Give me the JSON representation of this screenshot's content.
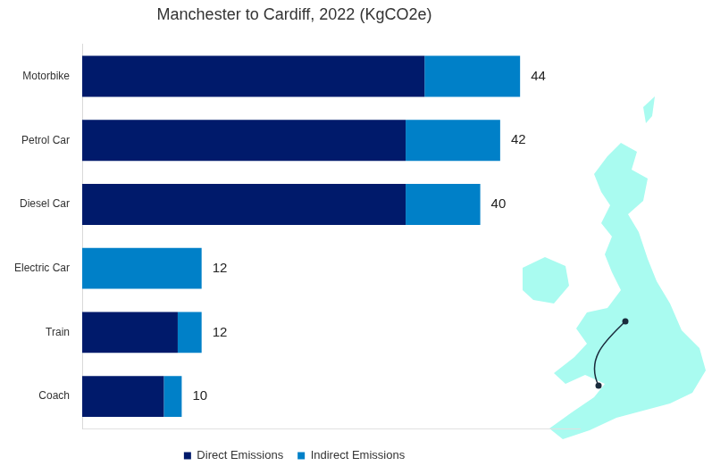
{
  "chart_data": {
    "type": "bar",
    "title": "Manchester to Cardiff, 2022 (KgCO2e)",
    "orientation": "horizontal",
    "stacked": true,
    "categories": [
      "Motorbike",
      "Petrol Car",
      "Diesel Car",
      "Electric Car",
      "Train",
      "Coach"
    ],
    "series": [
      {
        "name": "Direct Emissions",
        "color": "#001a6b",
        "values": [
          34.4,
          32.5,
          32.5,
          0,
          9.6,
          8.2
        ]
      },
      {
        "name": "Indirect Emissions",
        "color": "#0080c8",
        "values": [
          9.6,
          9.5,
          7.5,
          12,
          2.4,
          1.8
        ]
      }
    ],
    "totals": [
      44,
      42,
      40,
      12,
      12,
      10
    ],
    "xlim": [
      0,
      50
    ],
    "tick_labels": "y",
    "grid": false,
    "legend": "bottom"
  }
}
